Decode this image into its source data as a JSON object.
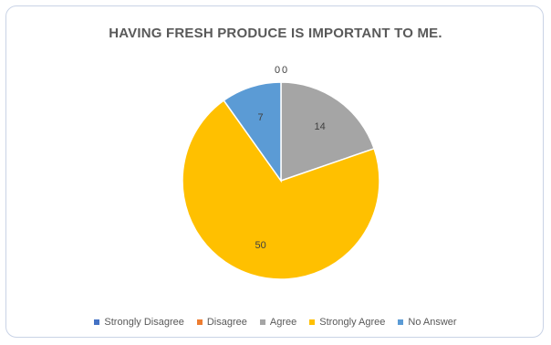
{
  "chart_data": {
    "type": "pie",
    "title": "HAVING FRESH PRODUCE IS IMPORTANT TO ME.",
    "categories": [
      "Strongly Disagree",
      "Disagree",
      "Agree",
      "Strongly Agree",
      "No Answer"
    ],
    "values": [
      0,
      0,
      14,
      50,
      7
    ],
    "colors": [
      "#4472C4",
      "#ED7D31",
      "#A5A5A5",
      "#FFC000",
      "#5B9BD5"
    ],
    "data_labels": [
      "0",
      "0",
      "14",
      "50",
      "7"
    ],
    "legend": "bottom"
  }
}
